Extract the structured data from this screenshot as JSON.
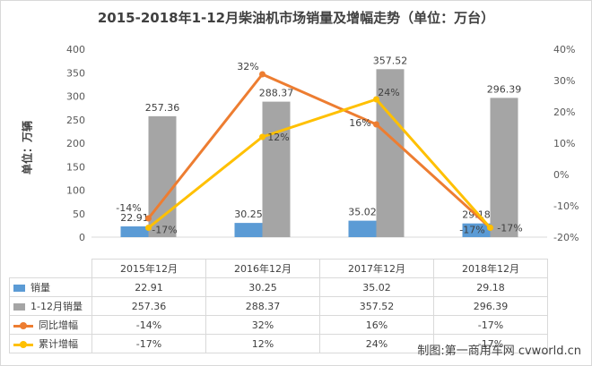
{
  "title": "2015-2018年1-12月柴油机市场销量及增幅走势（单位：万台）",
  "footer": "制图:第一商用车网 cvworld.cn",
  "colors": {
    "sales": "#5b9bd5",
    "cumulative_sales": "#a5a5a5",
    "yoy": "#ed7d31",
    "cum_growth": "#ffc000"
  },
  "chart_data": {
    "type": "bar",
    "title": "2015-2018年1-12月柴油机市场销量及增幅走势（单位：万台）",
    "ylabel": "单位：万辆",
    "categories": [
      "2015年12月",
      "2016年12月",
      "2017年12月",
      "2018年12月"
    ],
    "ylim": [
      0,
      400
    ],
    "yticks": [
      "0",
      "50",
      "100",
      "150",
      "200",
      "250",
      "300",
      "350",
      "400"
    ],
    "y2lim": [
      -20,
      40
    ],
    "y2ticks": [
      "-20%",
      "-10%",
      "0%",
      "10%",
      "20%",
      "30%",
      "40%"
    ],
    "grid": false,
    "legend": "table-below",
    "series": [
      {
        "name": "销量",
        "kind": "bar",
        "axis": "left",
        "values": [
          22.91,
          30.25,
          35.02,
          29.18
        ],
        "labels": [
          "22.91",
          "30.25",
          "35.02",
          "29.18"
        ]
      },
      {
        "name": "1-12月销量",
        "kind": "bar",
        "axis": "left",
        "values": [
          257.36,
          288.37,
          357.52,
          296.39
        ],
        "labels": [
          "257.36",
          "288.37",
          "357.52",
          "296.39"
        ]
      },
      {
        "name": "同比增幅",
        "kind": "line",
        "axis": "right",
        "values": [
          -14,
          32,
          16,
          -17
        ],
        "labels": [
          "-14%",
          "32%",
          "16%",
          "-17%"
        ]
      },
      {
        "name": "累计增幅",
        "kind": "line",
        "axis": "right",
        "values": [
          -17,
          12,
          24,
          -17
        ],
        "labels": [
          "-17%",
          "12%",
          "24%",
          "-17%"
        ]
      }
    ]
  }
}
